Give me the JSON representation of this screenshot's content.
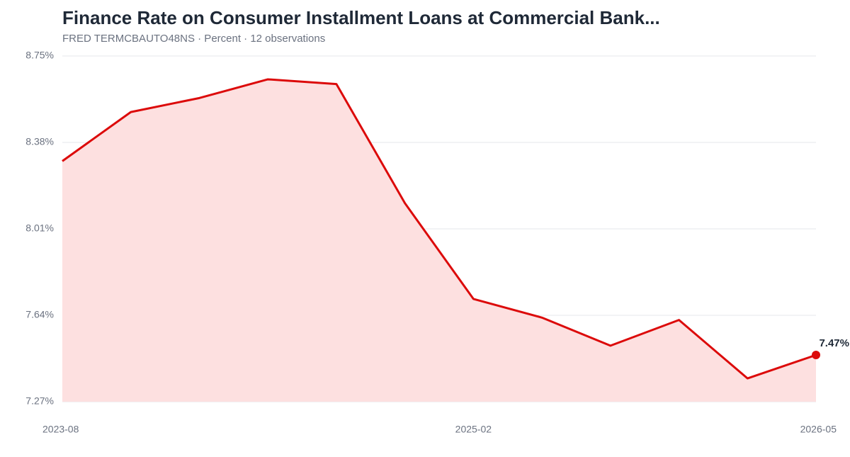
{
  "chart_data": {
    "type": "line",
    "title": "Finance Rate on Consumer Installment Loans at Commercial Bank...",
    "subtitle": "FRED TERMCBAUTO48NS · Percent · 12 observations",
    "categories": [
      "2023-08",
      null,
      null,
      null,
      null,
      null,
      "2025-02",
      null,
      null,
      null,
      null,
      "2026-05"
    ],
    "values": [
      8.3,
      8.51,
      8.57,
      8.65,
      8.63,
      8.12,
      7.71,
      7.63,
      7.51,
      7.62,
      7.37,
      7.47
    ],
    "value_labels": [
      null,
      null,
      null,
      null,
      null,
      null,
      null,
      null,
      null,
      null,
      null,
      "7.47%"
    ],
    "color": "#dc0a0a",
    "area_color": "#fde0e0",
    "ylim": [
      7.27,
      8.75
    ],
    "yticks": [
      {
        "value": 7.27,
        "label": "7.27%"
      },
      {
        "value": 7.64,
        "label": "7.64%"
      },
      {
        "value": 8.01,
        "label": "8.01%"
      },
      {
        "value": 8.38,
        "label": "8.38%"
      },
      {
        "value": 8.75,
        "label": "8.75%"
      }
    ],
    "grid": true
  }
}
